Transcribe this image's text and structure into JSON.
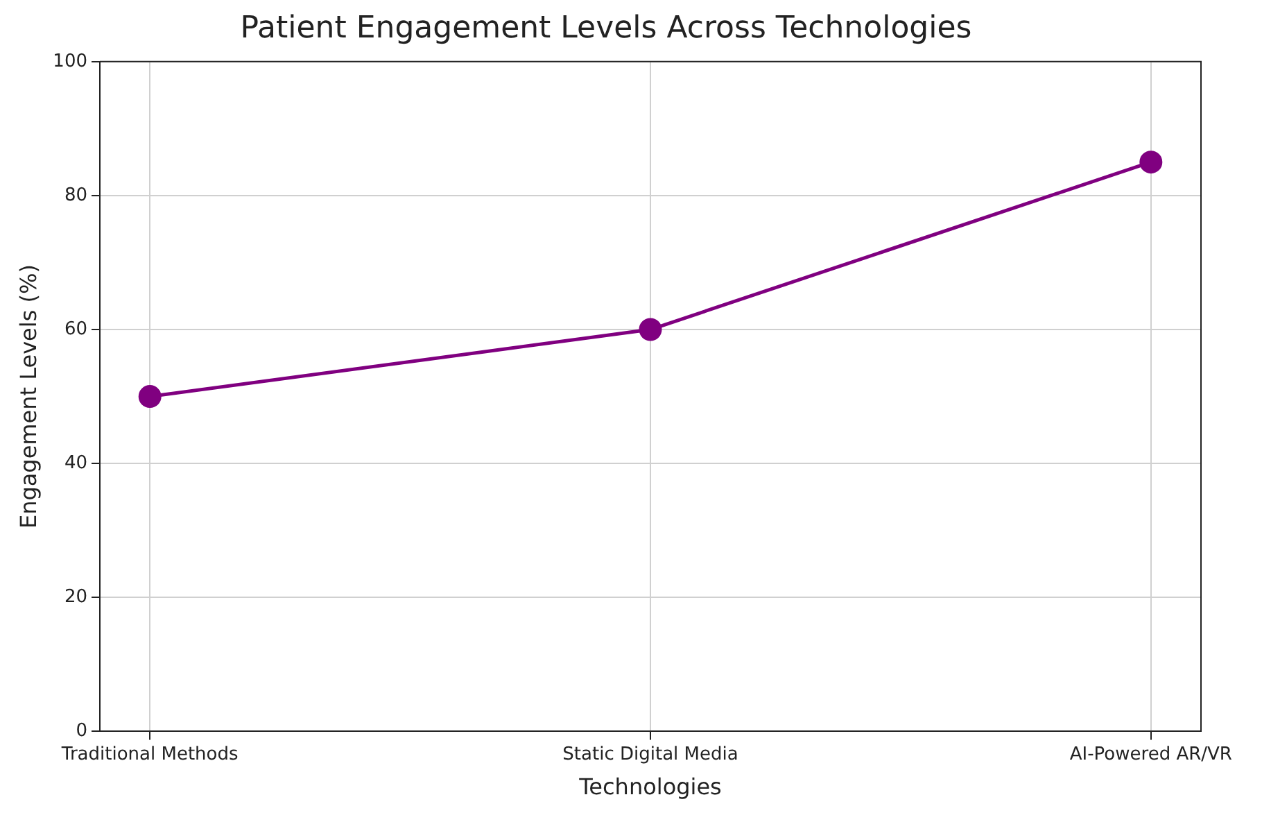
{
  "chart_data": {
    "type": "line",
    "title": "Patient Engagement Levels Across Technologies",
    "xlabel": "Technologies",
    "ylabel": "Engagement Levels (%)",
    "categories": [
      "Traditional Methods",
      "Static Digital Media",
      "AI-Powered AR/VR"
    ],
    "series": [
      {
        "color": "#800080",
        "values": [
          50,
          60,
          85
        ]
      }
    ],
    "ylim": [
      0,
      100
    ],
    "yticks": [
      0,
      20,
      40,
      60,
      80,
      100
    ],
    "grid": true,
    "marker": "circle",
    "line_style": "solid"
  }
}
